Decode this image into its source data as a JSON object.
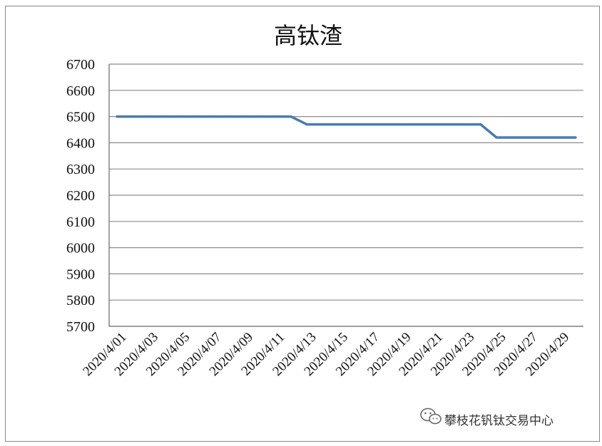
{
  "chart_data": {
    "type": "line",
    "title": "高钛渣",
    "xlabel": "",
    "ylabel": "",
    "ylim": [
      5700,
      6700
    ],
    "y_ticks": [
      5700,
      5800,
      5900,
      6000,
      6100,
      6200,
      6300,
      6400,
      6500,
      6600,
      6700
    ],
    "grid": true,
    "legend": "none",
    "x_tick_labels": [
      "2020/4/01",
      "2020/4/03",
      "2020/4/05",
      "2020/4/07",
      "2020/4/09",
      "2020/4/11",
      "2020/4/13",
      "2020/4/15",
      "2020/4/17",
      "2020/4/19",
      "2020/4/21",
      "2020/4/23",
      "2020/4/25",
      "2020/4/27",
      "2020/4/29"
    ],
    "x": [
      "2020/4/01",
      "2020/4/02",
      "2020/4/03",
      "2020/4/04",
      "2020/4/05",
      "2020/4/06",
      "2020/4/07",
      "2020/4/08",
      "2020/4/09",
      "2020/4/10",
      "2020/4/11",
      "2020/4/12",
      "2020/4/13",
      "2020/4/14",
      "2020/4/15",
      "2020/4/16",
      "2020/4/17",
      "2020/4/18",
      "2020/4/19",
      "2020/4/20",
      "2020/4/21",
      "2020/4/22",
      "2020/4/23",
      "2020/4/24",
      "2020/4/25",
      "2020/4/26",
      "2020/4/27",
      "2020/4/28",
      "2020/4/29",
      "2020/4/30"
    ],
    "series": [
      {
        "color": "#4a7ab5",
        "values": [
          6500,
          6500,
          6500,
          6500,
          6500,
          6500,
          6500,
          6500,
          6500,
          6500,
          6500,
          6500,
          6470,
          6470,
          6470,
          6470,
          6470,
          6470,
          6470,
          6470,
          6470,
          6470,
          6470,
          6470,
          6420,
          6420,
          6420,
          6420,
          6420,
          6420
        ]
      }
    ]
  },
  "watermark": {
    "text": "攀枝花钒钛交易中心",
    "icon": "wechat-icon"
  }
}
